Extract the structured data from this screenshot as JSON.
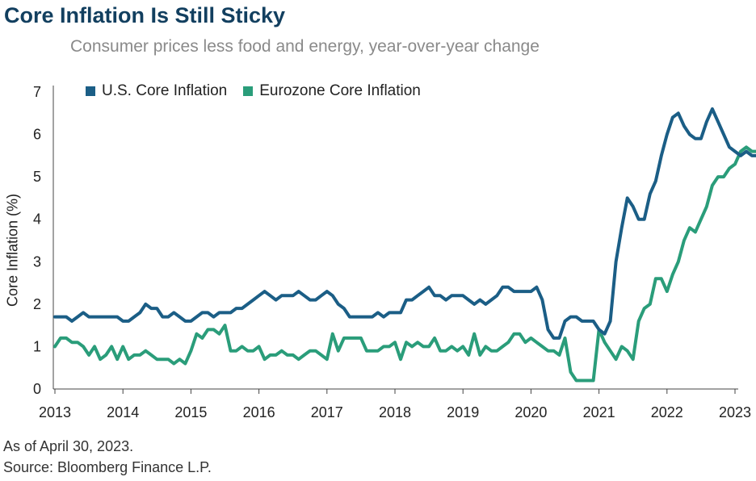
{
  "title": "Core Inflation Is Still Sticky",
  "subtitle": "Consumer prices less food and energy, year-over-year change",
  "footnotes": {
    "as_of": "As of April 30, 2023.",
    "source": "Source: Bloomberg Finance L.P."
  },
  "chart_data": {
    "type": "line",
    "ylabel": "Core Inflation (%)",
    "xlabel": "",
    "ylim": [
      0,
      7
    ],
    "yticks": [
      "0",
      "1",
      "2",
      "3",
      "4",
      "5",
      "6",
      "7"
    ],
    "xticks": [
      "2013",
      "2014",
      "2015",
      "2016",
      "2017",
      "2018",
      "2019",
      "2020",
      "2021",
      "2022",
      "2023"
    ],
    "x_start": "2013-01",
    "x_end": "2023-04",
    "grid": false,
    "legend_position": "top-left",
    "series": [
      {
        "name": "U.S. Core Inflation",
        "color": "#1b5e86",
        "values": [
          1.7,
          1.7,
          1.7,
          1.6,
          1.7,
          1.8,
          1.7,
          1.7,
          1.7,
          1.7,
          1.7,
          1.7,
          1.6,
          1.6,
          1.7,
          1.8,
          2.0,
          1.9,
          1.9,
          1.7,
          1.7,
          1.8,
          1.7,
          1.6,
          1.6,
          1.7,
          1.8,
          1.8,
          1.7,
          1.8,
          1.8,
          1.8,
          1.9,
          1.9,
          2.0,
          2.1,
          2.2,
          2.3,
          2.2,
          2.1,
          2.2,
          2.2,
          2.2,
          2.3,
          2.2,
          2.1,
          2.1,
          2.2,
          2.3,
          2.2,
          2.0,
          1.9,
          1.7,
          1.7,
          1.7,
          1.7,
          1.7,
          1.8,
          1.7,
          1.8,
          1.8,
          1.8,
          2.1,
          2.1,
          2.2,
          2.3,
          2.4,
          2.2,
          2.2,
          2.1,
          2.2,
          2.2,
          2.2,
          2.1,
          2.0,
          2.1,
          2.0,
          2.1,
          2.2,
          2.4,
          2.4,
          2.3,
          2.3,
          2.3,
          2.3,
          2.4,
          2.1,
          1.4,
          1.2,
          1.2,
          1.6,
          1.7,
          1.7,
          1.6,
          1.6,
          1.6,
          1.4,
          1.3,
          1.6,
          3.0,
          3.8,
          4.5,
          4.3,
          4.0,
          4.0,
          4.6,
          4.9,
          5.5,
          6.0,
          6.4,
          6.5,
          6.2,
          6.0,
          5.9,
          5.9,
          6.3,
          6.6,
          6.3,
          6.0,
          5.7,
          5.6,
          5.5,
          5.6,
          5.5,
          5.5
        ],
        "__note": ""
      },
      {
        "name": "Eurozone Core Inflation",
        "color": "#2a9d7a",
        "values": [
          1.0,
          1.2,
          1.2,
          1.1,
          1.1,
          1.0,
          0.8,
          1.0,
          0.7,
          0.8,
          1.0,
          0.7,
          1.0,
          0.7,
          0.8,
          0.8,
          0.9,
          0.8,
          0.7,
          0.7,
          0.7,
          0.6,
          0.7,
          0.6,
          0.9,
          1.3,
          1.2,
          1.4,
          1.4,
          1.3,
          1.5,
          0.9,
          0.9,
          1.0,
          0.9,
          0.9,
          1.0,
          0.7,
          0.8,
          0.8,
          0.9,
          0.8,
          0.8,
          0.7,
          0.8,
          0.9,
          0.9,
          0.8,
          0.7,
          1.3,
          0.9,
          1.2,
          1.2,
          1.2,
          1.2,
          0.9,
          0.9,
          0.9,
          1.0,
          1.0,
          1.1,
          0.7,
          1.1,
          1.0,
          1.1,
          1.0,
          1.0,
          1.2,
          0.9,
          0.9,
          1.0,
          0.9,
          1.0,
          0.8,
          1.3,
          0.8,
          1.0,
          0.9,
          0.9,
          1.0,
          1.1,
          1.3,
          1.3,
          1.1,
          1.2,
          1.1,
          1.0,
          0.9,
          0.9,
          0.8,
          1.2,
          0.4,
          0.2,
          0.2,
          0.2,
          0.2,
          1.4,
          1.1,
          0.9,
          0.7,
          1.0,
          0.9,
          0.7,
          1.6,
          1.9,
          2.0,
          2.6,
          2.6,
          2.3,
          2.7,
          3.0,
          3.5,
          3.8,
          3.7,
          4.0,
          4.3,
          4.8,
          5.0,
          5.0,
          5.2,
          5.3,
          5.6,
          5.7,
          5.6,
          5.6
        ]
      }
    ]
  }
}
